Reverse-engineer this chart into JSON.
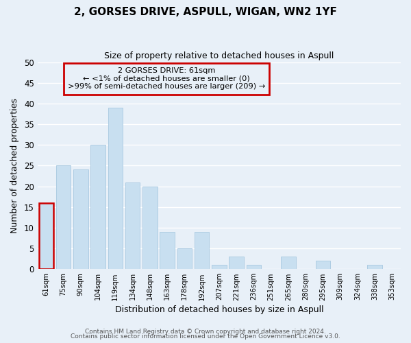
{
  "title": "2, GORSES DRIVE, ASPULL, WIGAN, WN2 1YF",
  "subtitle": "Size of property relative to detached houses in Aspull",
  "xlabel": "Distribution of detached houses by size in Aspull",
  "ylabel": "Number of detached properties",
  "bar_color": "#c8dff0",
  "bar_edge_color": "#a8c8e0",
  "annotation_box_color": "#cc0000",
  "annotation_lines": [
    "2 GORSES DRIVE: 61sqm",
    "← <1% of detached houses are smaller (0)",
    ">99% of semi-detached houses are larger (209) →"
  ],
  "categories": [
    "61sqm",
    "75sqm",
    "90sqm",
    "104sqm",
    "119sqm",
    "134sqm",
    "148sqm",
    "163sqm",
    "178sqm",
    "192sqm",
    "207sqm",
    "221sqm",
    "236sqm",
    "251sqm",
    "265sqm",
    "280sqm",
    "295sqm",
    "309sqm",
    "324sqm",
    "338sqm",
    "353sqm"
  ],
  "values": [
    16,
    25,
    24,
    30,
    39,
    21,
    20,
    9,
    5,
    9,
    1,
    3,
    1,
    0,
    3,
    0,
    2,
    0,
    0,
    1,
    0
  ],
  "ylim": [
    0,
    50
  ],
  "yticks": [
    0,
    5,
    10,
    15,
    20,
    25,
    30,
    35,
    40,
    45,
    50
  ],
  "footer_line1": "Contains HM Land Registry data © Crown copyright and database right 2024.",
  "footer_line2": "Contains public sector information licensed under the Open Government Licence v3.0.",
  "highlight_bar_index": 0,
  "highlight_bar_edge_color": "#cc0000",
  "plot_bg_color": "#e8f0f8",
  "fig_bg_color": "#e8f0f8",
  "grid_color": "#ffffff",
  "ann_box_bg": "#e8f0f8"
}
